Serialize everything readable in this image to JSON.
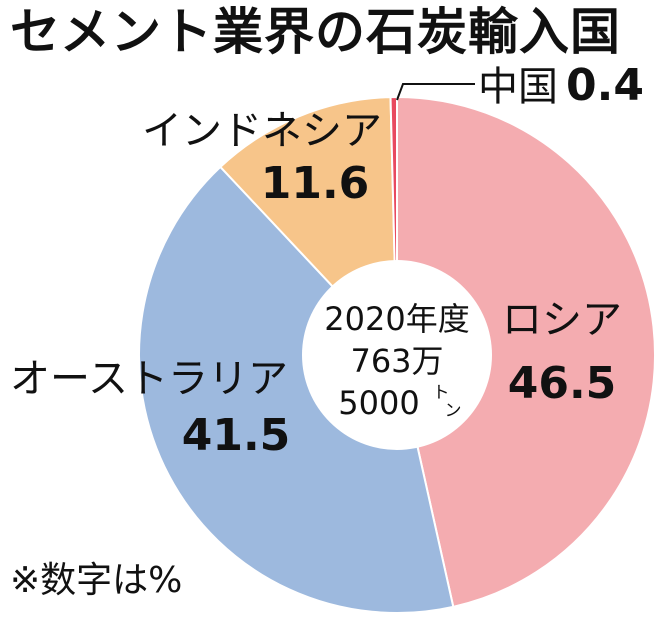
{
  "title": "セメント業界の石炭輸入国",
  "note": "※数字は%",
  "chart_data": {
    "type": "pie",
    "title": "セメント業界の石炭輸入国",
    "center_text": [
      "2020年度",
      "763万",
      "5000"
    ],
    "center_unit": "トン",
    "slices": [
      {
        "label": "ロシア",
        "value": 46.5,
        "value_text": "46.5",
        "color": "#f4acb0"
      },
      {
        "label": "オーストラリア",
        "value": 41.5,
        "value_text": "41.5",
        "color": "#9db9de"
      },
      {
        "label": "インドネシア",
        "value": 11.6,
        "value_text": "11.6",
        "color": "#f7c58a"
      },
      {
        "label": "中国",
        "value": 0.4,
        "value_text": "0.4",
        "color": "#e84a5f"
      }
    ]
  }
}
